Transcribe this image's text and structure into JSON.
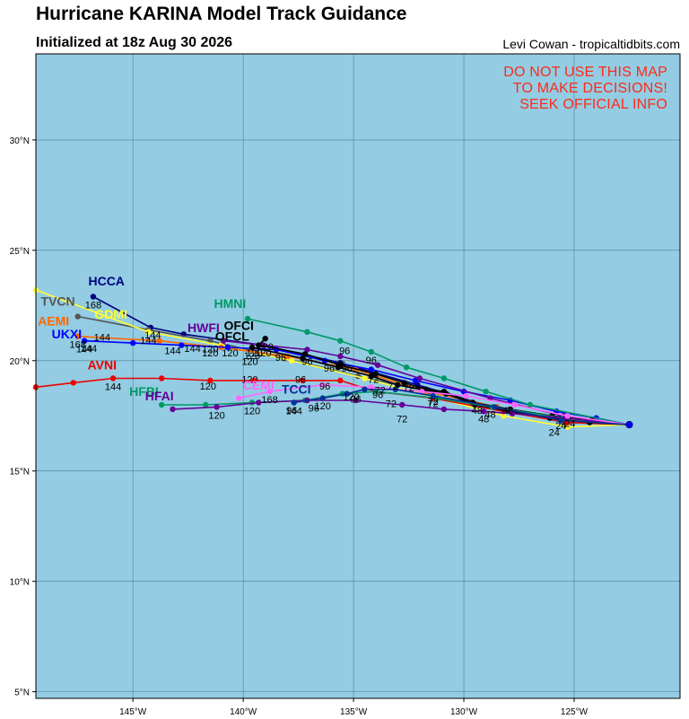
{
  "header": {
    "title": "Hurricane KARINA Model Track Guidance",
    "subtitle": "Initialized at 18z Aug 30 2026",
    "credit": "Levi Cowan - tropicaltidbits.com"
  },
  "warning_lines": [
    "DO NOT USE THIS MAP",
    "TO MAKE DECISIONS!",
    "SEEK OFFICIAL INFO"
  ],
  "colors": {
    "ocean": "#93cce3",
    "grid": "#4f7f92",
    "warning": "#ff2a1a"
  },
  "axes": {
    "lon_ticks": [
      {
        "value": -145,
        "label": "145°W"
      },
      {
        "value": -140,
        "label": "140°W"
      },
      {
        "value": -135,
        "label": "135°W"
      },
      {
        "value": -130,
        "label": "130°W"
      },
      {
        "value": -125,
        "label": "125°W"
      }
    ],
    "lat_ticks": [
      {
        "value": 30,
        "label": "30°N"
      },
      {
        "value": 25,
        "label": "25°N"
      },
      {
        "value": 20,
        "label": "20°N"
      },
      {
        "value": 15,
        "label": "15°N"
      },
      {
        "value": 10,
        "label": "10°N"
      },
      {
        "value": 5,
        "label": "5°N"
      }
    ],
    "lon_range": [
      -149.4,
      -120.2
    ],
    "lat_range": [
      4.7,
      33.9
    ]
  },
  "chart_data": {
    "type": "scatter",
    "origin": {
      "lon": -122.5,
      "lat": 17.1
    },
    "series": [
      {
        "name": "HCCA",
        "color": "#000080",
        "points": [
          [
            -122.5,
            17.1
          ],
          [
            -125.5,
            17.3
          ],
          [
            -128.7,
            17.9
          ],
          [
            -132.1,
            18.9
          ],
          [
            -135.6,
            19.9
          ],
          [
            -139.1,
            20.7
          ],
          [
            -142.7,
            21.2
          ],
          [
            -144.2,
            21.5
          ],
          [
            -146.8,
            22.9
          ]
        ],
        "hours": [
          {
            "idx": 8,
            "text": "168"
          }
        ],
        "label_at": [
          -146.2,
          23.4
        ]
      },
      {
        "name": "TVCN",
        "color": "#555555",
        "points": [
          [
            -122.5,
            17.1
          ],
          [
            -125.5,
            17.2
          ],
          [
            -128.5,
            17.9
          ],
          [
            -131.6,
            18.6
          ],
          [
            -134.8,
            19.3
          ],
          [
            -138.1,
            20.1
          ],
          [
            -141.5,
            20.9
          ],
          [
            -144.3,
            21.4
          ],
          [
            -147.5,
            22.0
          ]
        ],
        "hours": [
          {
            "idx": 6,
            "text": "120"
          }
        ],
        "label_at": [
          -148.4,
          22.5
        ]
      },
      {
        "name": "GDMI",
        "color": "#ffff33",
        "points": [
          [
            -122.5,
            17.1
          ],
          [
            -125.3,
            17.0
          ],
          [
            -128.2,
            17.5
          ],
          [
            -131.2,
            18.3
          ],
          [
            -134.5,
            19.2
          ],
          [
            -137.8,
            20.0
          ],
          [
            -141.0,
            20.7
          ],
          [
            -144.3,
            21.3
          ],
          [
            -149.4,
            23.2
          ]
        ],
        "hours": [
          {
            "idx": 7,
            "text": "144"
          }
        ],
        "label_at": [
          -146.0,
          21.9
        ]
      },
      {
        "name": "AEMI",
        "color": "#ff6600",
        "points": [
          [
            -122.5,
            17.1
          ],
          [
            -125.4,
            17.3
          ],
          [
            -128.5,
            17.9
          ],
          [
            -131.7,
            18.6
          ],
          [
            -134.9,
            19.6
          ],
          [
            -138.0,
            20.2
          ],
          [
            -141.0,
            20.6
          ],
          [
            -143.8,
            20.9
          ],
          [
            -147.5,
            21.1
          ]
        ],
        "hours": [
          {
            "idx": 8,
            "text": "168"
          }
        ],
        "label_at": [
          -148.6,
          21.6
        ]
      },
      {
        "name": "UKXI",
        "color": "#0000ff",
        "points": [
          [
            -122.5,
            17.1
          ],
          [
            -124.0,
            17.4
          ],
          [
            -125.8,
            17.7
          ],
          [
            -127.9,
            18.2
          ],
          [
            -130.0,
            18.6
          ],
          [
            -132.2,
            19.1
          ],
          [
            -134.2,
            19.6
          ],
          [
            -136.3,
            20.0
          ],
          [
            -138.5,
            20.5
          ],
          [
            -140.7,
            20.6
          ],
          [
            -142.8,
            20.7
          ],
          [
            -145.0,
            20.8
          ],
          [
            -147.2,
            20.9
          ]
        ],
        "hours": [
          {
            "idx": 12,
            "text": "144"
          }
        ],
        "label_at": [
          -148.0,
          21.0
        ]
      },
      {
        "name": "AVNI",
        "color": "#ee0000",
        "points": [
          [
            -122.5,
            17.1
          ],
          [
            -125.3,
            17.2
          ],
          [
            -128.2,
            17.7
          ],
          [
            -131.4,
            18.3
          ],
          [
            -134.0,
            18.6
          ],
          [
            -135.6,
            19.1
          ],
          [
            -137.3,
            19.1
          ],
          [
            -139.5,
            19.1
          ],
          [
            -141.5,
            19.1
          ],
          [
            -143.7,
            19.2
          ],
          [
            -145.9,
            19.2
          ],
          [
            -147.7,
            19.0
          ],
          [
            -149.4,
            18.8
          ]
        ],
        "hours": [
          {
            "idx": 10,
            "text": "144"
          }
        ],
        "label_at": [
          -146.4,
          19.6
        ]
      },
      {
        "name": "HMNI",
        "color": "#009966",
        "points": [
          [
            -122.5,
            17.1
          ],
          [
            -127.0,
            18.0
          ],
          [
            -129.0,
            18.6
          ],
          [
            -130.9,
            19.2
          ],
          [
            -132.6,
            19.7
          ],
          [
            -134.2,
            20.4
          ],
          [
            -135.6,
            20.9
          ],
          [
            -137.1,
            21.3
          ],
          [
            -139.8,
            21.9
          ]
        ],
        "hours": [
          {
            "idx": 5,
            "text": "96"
          }
        ],
        "label_at": [
          -140.6,
          22.4
        ]
      },
      {
        "name": "HWFI",
        "color": "#660099",
        "points": [
          [
            -122.5,
            17.1
          ],
          [
            -125.5,
            17.5
          ],
          [
            -128.8,
            18.3
          ],
          [
            -132.0,
            19.2
          ],
          [
            -133.9,
            19.8
          ],
          [
            -135.6,
            20.2
          ],
          [
            -137.1,
            20.5
          ],
          [
            -139.1,
            20.7
          ],
          [
            -140.9,
            20.9
          ]
        ],
        "hours": [
          {
            "idx": 5,
            "text": "96"
          }
        ],
        "label_at": [
          -141.8,
          21.3
        ]
      },
      {
        "name": "OFCI",
        "color": "#000000",
        "points": [
          [
            -122.5,
            17.1
          ],
          [
            -124.2,
            17.3
          ],
          [
            -126.0,
            17.5
          ],
          [
            -127.9,
            17.8
          ],
          [
            -129.6,
            18.1
          ],
          [
            -130.9,
            18.6
          ],
          [
            -131.7,
            18.7
          ],
          [
            -132.7,
            19.0
          ],
          [
            -134.0,
            19.4
          ],
          [
            -135.6,
            19.8
          ],
          [
            -137.2,
            20.3
          ],
          [
            -139.3,
            20.7
          ],
          [
            -139.0,
            21.0
          ]
        ],
        "hours": [
          {
            "idx": 12,
            "text": "120"
          }
        ],
        "label_at": [
          -140.2,
          21.4
        ]
      },
      {
        "name": "OFCL",
        "color": "#000000",
        "points": [
          [
            -122.5,
            17.1
          ],
          [
            -124.3,
            17.2
          ],
          [
            -126.1,
            17.4
          ],
          [
            -127.9,
            17.7
          ],
          [
            -129.5,
            18.0
          ],
          [
            -130.8,
            18.5
          ],
          [
            -131.9,
            18.7
          ],
          [
            -133.0,
            18.9
          ],
          [
            -134.2,
            19.3
          ],
          [
            -135.7,
            19.7
          ],
          [
            -137.3,
            20.1
          ],
          [
            -139.6,
            20.6
          ]
        ],
        "hours": [
          {
            "idx": 11,
            "text": "120"
          }
        ],
        "label_at": [
          -140.5,
          20.9
        ]
      },
      {
        "name": "HFBI",
        "color": "#009966",
        "points": [
          [
            -122.5,
            17.1
          ],
          [
            -125.5,
            17.4
          ],
          [
            -128.7,
            17.9
          ],
          [
            -131.2,
            18.3
          ],
          [
            -134.0,
            18.6
          ],
          [
            -135.5,
            18.5
          ],
          [
            -137.2,
            18.2
          ],
          [
            -139.6,
            18.1
          ],
          [
            -141.7,
            18.0
          ],
          [
            -143.7,
            18.0
          ]
        ],
        "hours": [
          {
            "idx": 7,
            "text": "120"
          }
        ],
        "label_at": [
          -144.5,
          18.4
        ]
      },
      {
        "name": "HFAI",
        "color": "#660099",
        "points": [
          [
            -122.5,
            17.1
          ],
          [
            -125.4,
            17.4
          ],
          [
            -127.8,
            17.6
          ],
          [
            -129.1,
            17.7
          ],
          [
            -130.9,
            17.8
          ],
          [
            -132.8,
            18.0
          ],
          [
            -134.9,
            18.2
          ],
          [
            -137.1,
            18.2
          ],
          [
            -139.3,
            18.1
          ],
          [
            -141.2,
            17.9
          ],
          [
            -143.2,
            17.8
          ]
        ],
        "hours": [
          {
            "idx": 9,
            "text": "120"
          }
        ],
        "label_at": [
          -143.8,
          18.2
        ]
      },
      {
        "name": "CEMI",
        "color": "#ff66ff",
        "points": [
          [
            -122.5,
            17.1
          ],
          [
            -125.3,
            17.5
          ],
          [
            -127.7,
            18.0
          ],
          [
            -129.9,
            18.4
          ],
          [
            -131.9,
            18.6
          ],
          [
            -134.2,
            18.8
          ],
          [
            -136.4,
            18.9
          ],
          [
            -138.8,
            18.6
          ],
          [
            -140.2,
            18.3
          ]
        ],
        "hours": [
          {
            "idx": 7,
            "text": "168"
          }
        ],
        "label_at": [
          -139.3,
          18.7
        ]
      },
      {
        "name": "TCCI",
        "color": "#003399",
        "points": [
          [
            -122.5,
            17.1
          ],
          [
            -125.6,
            17.3
          ],
          [
            -128.6,
            17.9
          ],
          [
            -131.4,
            18.4
          ],
          [
            -133.1,
            18.7
          ],
          [
            -134.5,
            18.7
          ],
          [
            -135.3,
            18.5
          ],
          [
            -136.4,
            18.3
          ],
          [
            -137.7,
            18.1
          ]
        ],
        "hours": [
          {
            "idx": 8,
            "text": "144"
          }
        ],
        "label_at": [
          -137.6,
          18.5
        ]
      }
    ],
    "extra_hours": [
      {
        "text": "24",
        "lon": -125.9,
        "lat": 16.6
      },
      {
        "text": "24",
        "lon": -125.6,
        "lat": 16.9
      },
      {
        "text": "24",
        "lon": -125.2,
        "lat": 17.0
      },
      {
        "text": "48",
        "lon": -128.8,
        "lat": 17.4
      },
      {
        "text": "48",
        "lon": -129.4,
        "lat": 17.6
      },
      {
        "text": "48",
        "lon": -128.0,
        "lat": 17.6
      },
      {
        "text": "48",
        "lon": -129.1,
        "lat": 17.2
      },
      {
        "text": "72",
        "lon": -131.4,
        "lat": 17.9
      },
      {
        "text": "72",
        "lon": -132.8,
        "lat": 17.2
      },
      {
        "text": "72",
        "lon": -133.3,
        "lat": 17.9
      },
      {
        "text": "72",
        "lon": -132.5,
        "lat": 18.6
      },
      {
        "text": "72",
        "lon": -133.8,
        "lat": 18.5
      },
      {
        "text": "72",
        "lon": -134.1,
        "lat": 19.0
      },
      {
        "text": "72",
        "lon": -131.4,
        "lat": 18.0
      },
      {
        "text": "72",
        "lon": -133.2,
        "lat": 18.7
      },
      {
        "text": "96",
        "lon": -135.4,
        "lat": 20.3
      },
      {
        "text": "96",
        "lon": -137.1,
        "lat": 19.8
      },
      {
        "text": "96",
        "lon": -136.1,
        "lat": 19.5
      },
      {
        "text": "96",
        "lon": -138.3,
        "lat": 20.0
      },
      {
        "text": "96",
        "lon": -137.4,
        "lat": 19.0
      },
      {
        "text": "96",
        "lon": -136.3,
        "lat": 18.7
      },
      {
        "text": "96",
        "lon": -136.8,
        "lat": 17.7
      },
      {
        "text": "96",
        "lon": -137.8,
        "lat": 17.6
      },
      {
        "text": "96",
        "lon": -134.9,
        "lat": 18.1
      },
      {
        "text": "96",
        "lon": -133.9,
        "lat": 18.3
      },
      {
        "text": "96",
        "lon": -135.3,
        "lat": 19.5
      },
      {
        "text": "120",
        "lon": -141.5,
        "lat": 20.2
      },
      {
        "text": "120",
        "lon": -140.6,
        "lat": 20.2
      },
      {
        "text": "120",
        "lon": -139.7,
        "lat": 19.8
      },
      {
        "text": "120",
        "lon": -139.5,
        "lat": 20.2
      },
      {
        "text": "120",
        "lon": -141.6,
        "lat": 18.7
      },
      {
        "text": "120",
        "lon": -139.7,
        "lat": 19.0
      },
      {
        "text": "120",
        "lon": -135.1,
        "lat": 18.2
      },
      {
        "text": "120",
        "lon": -136.4,
        "lat": 17.8
      },
      {
        "text": "120",
        "lon": -139.1,
        "lat": 20.2
      },
      {
        "text": "144",
        "lon": -142.3,
        "lat": 20.4
      },
      {
        "text": "144",
        "lon": -143.2,
        "lat": 20.3
      },
      {
        "text": "144",
        "lon": -144.1,
        "lat": 21.0
      },
      {
        "text": "144",
        "lon": -146.4,
        "lat": 20.9
      },
      {
        "text": "144",
        "lon": -147.0,
        "lat": 20.4
      }
    ]
  }
}
